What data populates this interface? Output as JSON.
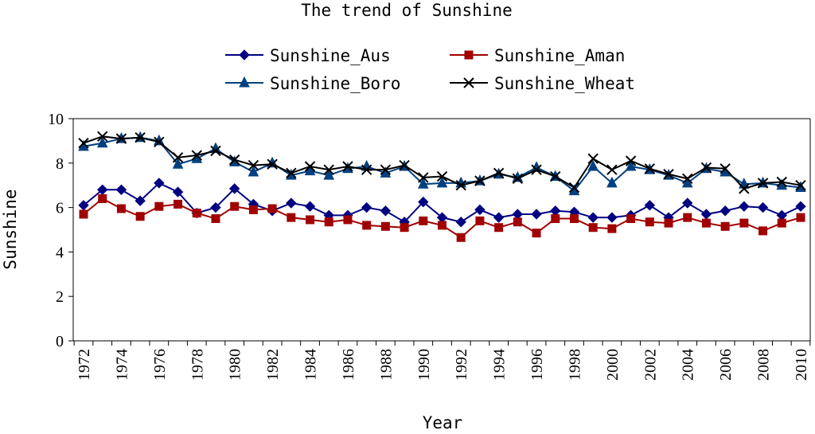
{
  "chart_data": {
    "type": "line",
    "title": "The trend of Sunshine",
    "xlabel": "Year",
    "ylabel": "Sunshine",
    "ylim": [
      0,
      10
    ],
    "yticks": [
      "0",
      "2",
      "4",
      "6",
      "8",
      "10"
    ],
    "x": [
      1972,
      1973,
      1974,
      1975,
      1976,
      1977,
      1978,
      1979,
      1980,
      1981,
      1982,
      1983,
      1984,
      1985,
      1986,
      1987,
      1988,
      1989,
      1990,
      1991,
      1992,
      1993,
      1994,
      1995,
      1996,
      1997,
      1998,
      1999,
      2000,
      2001,
      2002,
      2003,
      2004,
      2005,
      2006,
      2007,
      2008,
      2009,
      2010
    ],
    "xtick_labels": [
      "1972",
      "1974",
      "1976",
      "1978",
      "1980",
      "1982",
      "1984",
      "1986",
      "1988",
      "1990",
      "1992",
      "1994",
      "1996",
      "1998",
      "2000",
      "2002",
      "2004",
      "2006",
      "2008",
      "2010"
    ],
    "grid": false,
    "legend_position": "top",
    "series": [
      {
        "name": "Sunshine_Aus",
        "color": "#000080",
        "marker": "diamond",
        "values": [
          6.1,
          6.8,
          6.8,
          6.3,
          7.1,
          6.7,
          5.75,
          6.0,
          6.85,
          6.15,
          5.85,
          6.2,
          6.05,
          5.65,
          5.65,
          6.0,
          5.85,
          5.35,
          6.25,
          5.55,
          5.35,
          5.9,
          5.55,
          5.7,
          5.7,
          5.85,
          5.8,
          5.55,
          5.55,
          5.65,
          6.1,
          5.55,
          6.2,
          5.7,
          5.85,
          6.05,
          6.0,
          5.65,
          6.05
        ]
      },
      {
        "name": "Sunshine_Aman",
        "color": "#a00000",
        "marker": "square",
        "values": [
          5.7,
          6.4,
          5.95,
          5.6,
          6.05,
          6.15,
          5.75,
          5.5,
          6.05,
          5.9,
          5.95,
          5.55,
          5.45,
          5.35,
          5.45,
          5.2,
          5.15,
          5.1,
          5.4,
          5.2,
          4.65,
          5.4,
          5.1,
          5.35,
          4.85,
          5.5,
          5.5,
          5.1,
          5.05,
          5.5,
          5.35,
          5.3,
          5.55,
          5.3,
          5.15,
          5.3,
          4.95,
          5.3,
          5.55
        ]
      },
      {
        "name": "Sunshine_Boro",
        "color": "#004080",
        "marker": "triangle",
        "values": [
          8.75,
          8.9,
          9.1,
          9.15,
          9.0,
          7.95,
          8.2,
          8.65,
          8.05,
          7.6,
          8.0,
          7.45,
          7.65,
          7.45,
          7.75,
          7.85,
          7.55,
          7.85,
          7.05,
          7.1,
          7.1,
          7.2,
          7.5,
          7.35,
          7.8,
          7.4,
          6.75,
          7.85,
          7.1,
          7.85,
          7.7,
          7.45,
          7.1,
          7.75,
          7.6,
          7.05,
          7.1,
          7.0,
          6.9
        ]
      },
      {
        "name": "Sunshine_Wheat",
        "color": "#000000",
        "marker": "x",
        "values": [
          8.9,
          9.2,
          9.1,
          9.15,
          8.95,
          8.25,
          8.35,
          8.55,
          8.15,
          7.9,
          7.95,
          7.55,
          7.85,
          7.7,
          7.85,
          7.7,
          7.7,
          7.9,
          7.35,
          7.4,
          7.0,
          7.2,
          7.55,
          7.3,
          7.7,
          7.4,
          6.9,
          8.2,
          7.7,
          8.1,
          7.75,
          7.5,
          7.3,
          7.8,
          7.75,
          6.85,
          7.1,
          7.15,
          7.0
        ]
      }
    ]
  }
}
